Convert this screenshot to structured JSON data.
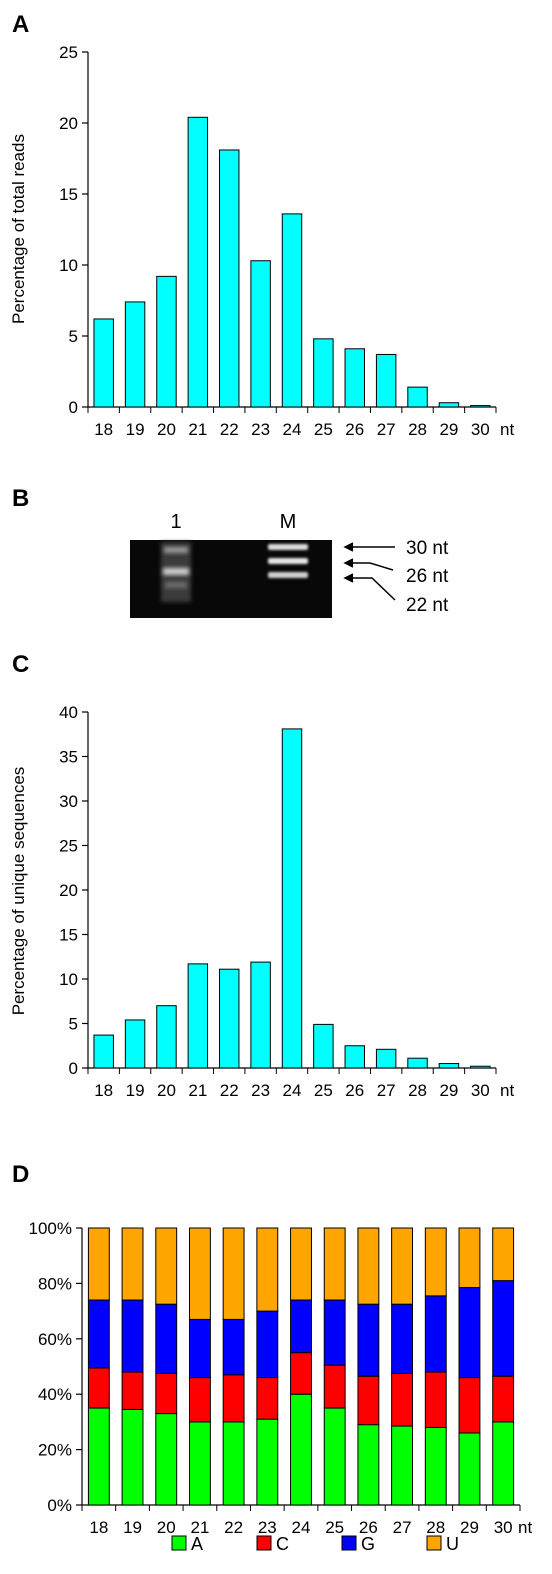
{
  "panels": {
    "A": "A",
    "B": "B",
    "C": "C",
    "D": "D"
  },
  "x_unit": "nt",
  "chart_data": [
    {
      "panel": "A",
      "type": "bar",
      "ylabel": "Percentage of total reads",
      "ylim": [
        0,
        25
      ],
      "yticks": [
        0,
        5,
        10,
        15,
        20,
        25
      ],
      "categories": [
        "18",
        "19",
        "20",
        "21",
        "22",
        "23",
        "24",
        "25",
        "26",
        "27",
        "28",
        "29",
        "30"
      ],
      "values": [
        6.2,
        7.4,
        9.2,
        20.4,
        18.1,
        10.3,
        13.6,
        4.8,
        4.1,
        3.7,
        1.4,
        0.3,
        0.1
      ],
      "bar_color": "#00ffff"
    },
    {
      "panel": "C",
      "type": "bar",
      "ylabel": "Percentage of unique sequences",
      "ylim": [
        0,
        40
      ],
      "yticks": [
        0,
        5,
        10,
        15,
        20,
        25,
        30,
        35,
        40
      ],
      "categories": [
        "18",
        "19",
        "20",
        "21",
        "22",
        "23",
        "24",
        "25",
        "26",
        "27",
        "28",
        "29",
        "30"
      ],
      "values": [
        3.7,
        5.4,
        7.0,
        11.7,
        11.1,
        11.9,
        38.1,
        4.9,
        2.5,
        2.1,
        1.1,
        0.5,
        0.2
      ],
      "bar_color": "#00ffff"
    },
    {
      "panel": "D",
      "type": "bar",
      "stacked": true,
      "percent": true,
      "ylim": [
        0,
        100
      ],
      "ytick_labels": [
        "0%",
        "20%",
        "40%",
        "60%",
        "80%",
        "100%"
      ],
      "categories": [
        "18",
        "19",
        "20",
        "21",
        "22",
        "23",
        "24",
        "25",
        "26",
        "27",
        "28",
        "29",
        "30"
      ],
      "series": [
        {
          "name": "A",
          "color": "#00ff00",
          "values": [
            35,
            34.5,
            33,
            30,
            30,
            31,
            40,
            35,
            29,
            28.5,
            28,
            26,
            30
          ]
        },
        {
          "name": "C",
          "color": "#ff0000",
          "values": [
            14.5,
            13.5,
            14.5,
            16,
            17,
            15,
            15,
            15.5,
            17.5,
            19,
            20,
            20,
            16.5
          ]
        },
        {
          "name": "G",
          "color": "#0000ff",
          "values": [
            24.5,
            26,
            25,
            21,
            20,
            24,
            19,
            23.5,
            26,
            25,
            27.5,
            32.5,
            34.5
          ]
        },
        {
          "name": "U",
          "color": "#ffa500",
          "values": [
            26,
            26,
            27.5,
            33,
            33,
            30,
            26,
            26,
            27.5,
            27.5,
            24.5,
            21.5,
            19
          ]
        }
      ],
      "legend_position": "bottom"
    }
  ],
  "gel": {
    "lane_labels": [
      "1",
      "M"
    ],
    "size_labels": [
      "30 nt",
      "26 nt",
      "22 nt"
    ]
  }
}
